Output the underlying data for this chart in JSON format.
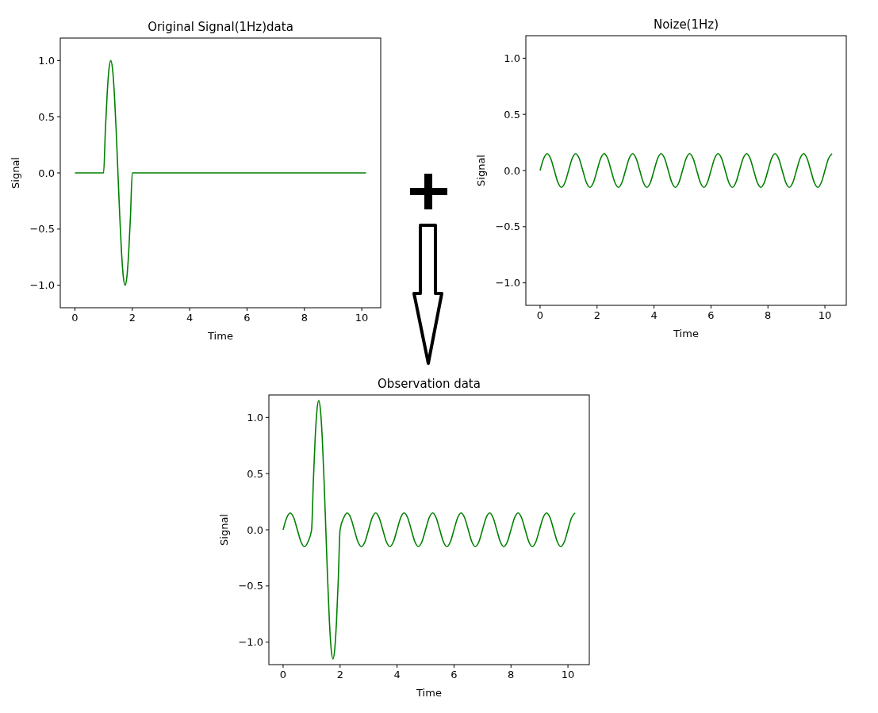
{
  "chart_data": [
    {
      "type": "line",
      "title": "Original Signal(1Hz)data",
      "xlabel": "Time",
      "ylabel": "Signal",
      "xlim": [
        -0.51,
        10.66
      ],
      "ylim": [
        -1.2,
        1.2
      ],
      "xticks": [
        0,
        2,
        4,
        6,
        8,
        10
      ],
      "yticks": [
        {
          "value": -1,
          "label": "−1.0"
        },
        {
          "value": -0.5,
          "label": "−0.5"
        },
        {
          "value": 0,
          "label": "0.0"
        },
        {
          "value": 0.5,
          "label": "0.5"
        },
        {
          "value": 1,
          "label": "1.0"
        }
      ],
      "series": [
        {
          "color": "#008000",
          "x": [
            0,
            1,
            1.0625,
            1.125,
            1.1875,
            1.25,
            1.3125,
            1.375,
            1.4375,
            1.5,
            1.5625,
            1.625,
            1.6875,
            1.75,
            1.8125,
            1.875,
            1.9375,
            2,
            10.15
          ],
          "values": [
            0,
            0,
            0.383,
            0.707,
            0.924,
            1,
            0.924,
            0.707,
            0.383,
            0,
            -0.383,
            -0.707,
            -0.924,
            -1,
            -0.924,
            -0.707,
            -0.383,
            0,
            0
          ]
        }
      ]
    },
    {
      "type": "line",
      "title": "Noize(1Hz)",
      "xlabel": "Time",
      "ylabel": "Signal",
      "xlim": [
        -0.5,
        10.75
      ],
      "ylim": [
        -1.2,
        1.2
      ],
      "xticks": [
        0,
        2,
        4,
        6,
        8,
        10
      ],
      "yticks": [
        {
          "value": -1,
          "label": "−1.0"
        },
        {
          "value": -0.5,
          "label": "−0.5"
        },
        {
          "value": 0,
          "label": "0.0"
        },
        {
          "value": 0.5,
          "label": "0.5"
        },
        {
          "value": 1,
          "label": "1.0"
        }
      ],
      "series": [
        {
          "color": "#008000",
          "x": [
            0,
            0.125,
            0.25,
            0.375,
            0.5,
            0.625,
            0.75,
            0.875,
            1,
            1.125,
            1.25,
            1.375,
            1.5,
            1.625,
            1.75,
            1.875,
            2,
            2.125,
            2.25,
            2.375,
            2.5,
            2.625,
            2.75,
            2.875,
            3,
            3.125,
            3.25,
            3.375,
            3.5,
            3.625,
            3.75,
            3.875,
            4,
            4.125,
            4.25,
            4.375,
            4.5,
            4.625,
            4.75,
            4.875,
            5,
            5.125,
            5.25,
            5.375,
            5.5,
            5.625,
            5.75,
            5.875,
            6,
            6.125,
            6.25,
            6.375,
            6.5,
            6.625,
            6.75,
            6.875,
            7,
            7.125,
            7.25,
            7.375,
            7.5,
            7.625,
            7.75,
            7.875,
            8,
            8.125,
            8.25,
            8.375,
            8.5,
            8.625,
            8.75,
            8.875,
            9,
            9.125,
            9.25,
            9.375,
            9.5,
            9.625,
            9.75,
            9.875,
            10,
            10.125,
            10.25
          ],
          "values": [
            0,
            0.106,
            0.15,
            0.106,
            0,
            -0.106,
            -0.15,
            -0.106,
            0,
            0.106,
            0.15,
            0.106,
            0,
            -0.106,
            -0.15,
            -0.106,
            0,
            0.106,
            0.15,
            0.106,
            0,
            -0.106,
            -0.15,
            -0.106,
            0,
            0.106,
            0.15,
            0.106,
            0,
            -0.106,
            -0.15,
            -0.106,
            0,
            0.106,
            0.15,
            0.106,
            0,
            -0.106,
            -0.15,
            -0.106,
            0,
            0.106,
            0.15,
            0.106,
            0,
            -0.106,
            -0.15,
            -0.106,
            0,
            0.106,
            0.15,
            0.106,
            0,
            -0.106,
            -0.15,
            -0.106,
            0,
            0.106,
            0.15,
            0.106,
            0,
            -0.106,
            -0.15,
            -0.106,
            0,
            0.106,
            0.15,
            0.106,
            0,
            -0.106,
            -0.15,
            -0.106,
            0,
            0.106,
            0.15,
            0.106,
            0,
            -0.106,
            -0.15,
            -0.106,
            0,
            0.106,
            0.15
          ]
        }
      ]
    },
    {
      "type": "line",
      "title": "Observation data",
      "xlabel": "Time",
      "ylabel": "Signal",
      "xlim": [
        -0.5,
        10.75
      ],
      "ylim": [
        -1.2,
        1.2
      ],
      "xticks": [
        0,
        2,
        4,
        6,
        8,
        10
      ],
      "yticks": [
        {
          "value": -1,
          "label": "−1.0"
        },
        {
          "value": -0.5,
          "label": "−0.5"
        },
        {
          "value": 0,
          "label": "0.0"
        },
        {
          "value": 0.5,
          "label": "0.5"
        },
        {
          "value": 1,
          "label": "1.0"
        }
      ],
      "series": [
        {
          "color": "#008000",
          "x": [
            0,
            0.125,
            0.25,
            0.375,
            0.5,
            0.625,
            0.75,
            0.875,
            1,
            1.0625,
            1.125,
            1.1875,
            1.25,
            1.3125,
            1.375,
            1.4375,
            1.5,
            1.5625,
            1.625,
            1.6875,
            1.75,
            1.8125,
            1.875,
            1.9375,
            2,
            2.125,
            2.25,
            2.375,
            2.5,
            2.625,
            2.75,
            2.875,
            3,
            3.125,
            3.25,
            3.375,
            3.5,
            3.625,
            3.75,
            3.875,
            4,
            4.125,
            4.25,
            4.375,
            4.5,
            4.625,
            4.75,
            4.875,
            5,
            5.125,
            5.25,
            5.375,
            5.5,
            5.625,
            5.75,
            5.875,
            6,
            6.125,
            6.25,
            6.375,
            6.5,
            6.625,
            6.75,
            6.875,
            7,
            7.125,
            7.25,
            7.375,
            7.5,
            7.625,
            7.75,
            7.875,
            8,
            8.125,
            8.25,
            8.375,
            8.5,
            8.625,
            8.75,
            8.875,
            9,
            9.125,
            9.25,
            9.375,
            9.5,
            9.625,
            9.75,
            9.875,
            10,
            10.125,
            10.25
          ],
          "values": [
            0,
            0.106,
            0.15,
            0.106,
            0,
            -0.106,
            -0.15,
            -0.106,
            0,
            0.44,
            0.813,
            1.062,
            1.15,
            1.062,
            0.813,
            0.44,
            0,
            -0.44,
            -0.813,
            -1.062,
            -1.15,
            -1.062,
            -0.813,
            -0.44,
            0,
            0.106,
            0.15,
            0.106,
            0,
            -0.106,
            -0.15,
            -0.106,
            0,
            0.106,
            0.15,
            0.106,
            0,
            -0.106,
            -0.15,
            -0.106,
            0,
            0.106,
            0.15,
            0.106,
            0,
            -0.106,
            -0.15,
            -0.106,
            0,
            0.106,
            0.15,
            0.106,
            0,
            -0.106,
            -0.15,
            -0.106,
            0,
            0.106,
            0.15,
            0.106,
            0,
            -0.106,
            -0.15,
            -0.106,
            0,
            0.106,
            0.15,
            0.106,
            0,
            -0.106,
            -0.15,
            -0.106,
            0,
            0.106,
            0.15,
            0.106,
            0,
            -0.106,
            -0.15,
            -0.106,
            0,
            0.106,
            0.15,
            0.106,
            0,
            -0.106,
            -0.15,
            -0.106,
            0,
            0.106,
            0.15
          ]
        }
      ]
    }
  ]
}
